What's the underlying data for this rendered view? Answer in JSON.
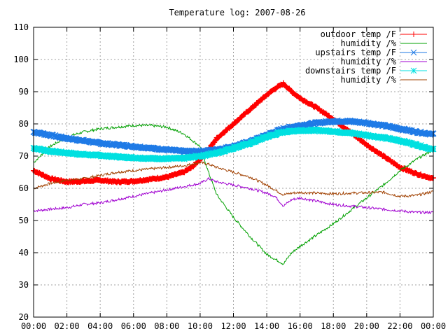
{
  "chart_data": {
    "type": "line",
    "title": "Temperature log: 2007-08-26",
    "xlabel": "",
    "ylabel": "",
    "x_ticks": [
      "00:00",
      "02:00",
      "04:00",
      "06:00",
      "08:00",
      "10:00",
      "12:00",
      "14:00",
      "16:00",
      "18:00",
      "20:00",
      "22:00",
      "00:00"
    ],
    "xlim": [
      0,
      24
    ],
    "ylim": [
      20,
      110
    ],
    "y_ticks": [
      20,
      30,
      40,
      50,
      60,
      70,
      80,
      90,
      100,
      110
    ],
    "grid": true,
    "legend_position": "top-right",
    "series": [
      {
        "name": "outdoor temp /F",
        "color": "#ff0000",
        "marker": "plus",
        "x": [
          0,
          1,
          2,
          3,
          4,
          5,
          6,
          7,
          8,
          9,
          9.5,
          10,
          10.5,
          11,
          12,
          13,
          14,
          14.5,
          15,
          15.5,
          16,
          17,
          18,
          19,
          20,
          21,
          22,
          23,
          24
        ],
        "y": [
          65.5,
          63.0,
          62.0,
          62.2,
          62.5,
          62.0,
          62.2,
          62.8,
          63.5,
          65.0,
          66.5,
          69.0,
          72.0,
          75.5,
          80.0,
          84.5,
          89.0,
          91.0,
          92.5,
          90.0,
          88.0,
          85.0,
          81.5,
          77.5,
          73.5,
          70.0,
          66.5,
          64.5,
          63.0
        ]
      },
      {
        "name": "humidity /%",
        "color": "#00a000",
        "marker": "none",
        "x": [
          0,
          1,
          2,
          3,
          4,
          5,
          6,
          7,
          8,
          9,
          10,
          10.5,
          11,
          12,
          13,
          14,
          14.5,
          15,
          15.5,
          16,
          17,
          18,
          19,
          20,
          21,
          22,
          23,
          24
        ],
        "y": [
          68.0,
          73.0,
          76.0,
          77.5,
          78.5,
          79.0,
          79.5,
          79.5,
          79.0,
          77.0,
          73.0,
          65.0,
          58.0,
          51.0,
          45.0,
          39.5,
          38.0,
          36.5,
          40.0,
          42.0,
          45.5,
          49.0,
          53.0,
          57.0,
          61.0,
          65.5,
          69.0,
          72.0
        ]
      },
      {
        "name": "upstairs temp /F",
        "color": "#1e7ae6",
        "marker": "cross",
        "x": [
          0,
          1,
          2,
          3,
          4,
          5,
          6,
          7,
          8,
          9,
          10,
          11,
          12,
          13,
          14,
          15,
          16,
          17,
          18,
          19,
          20,
          21,
          22,
          23,
          24
        ],
        "y": [
          77.5,
          76.5,
          75.5,
          74.8,
          74.0,
          73.5,
          73.0,
          72.5,
          72.0,
          71.5,
          71.5,
          72.0,
          73.0,
          74.5,
          76.5,
          78.5,
          79.5,
          80.3,
          80.8,
          80.8,
          80.3,
          79.5,
          78.5,
          77.5,
          76.8
        ]
      },
      {
        "name": "humidity /%",
        "color": "#a000d0",
        "marker": "none",
        "x": [
          0,
          1,
          2,
          3,
          4,
          5,
          6,
          7,
          8,
          9,
          10,
          10.5,
          11,
          12,
          13,
          14,
          14.5,
          15,
          15.5,
          16,
          17,
          18,
          19,
          20,
          21,
          22,
          23,
          24
        ],
        "y": [
          53.0,
          53.5,
          54.0,
          55.0,
          55.5,
          56.5,
          57.5,
          58.5,
          59.5,
          60.5,
          61.5,
          63.0,
          62.0,
          61.0,
          60.0,
          58.5,
          57.5,
          54.5,
          56.5,
          57.0,
          56.0,
          55.0,
          54.5,
          54.0,
          53.5,
          53.0,
          52.5,
          52.5
        ]
      },
      {
        "name": "downstairs temp /F",
        "color": "#00e0e0",
        "marker": "star",
        "x": [
          0,
          1,
          2,
          3,
          4,
          5,
          6,
          7,
          8,
          9,
          10,
          11,
          12,
          13,
          14,
          15,
          16,
          17,
          18,
          19,
          20,
          21,
          22,
          23,
          24
        ],
        "y": [
          72.5,
          71.5,
          71.0,
          70.5,
          70.2,
          69.8,
          69.5,
          69.3,
          69.2,
          69.3,
          70.0,
          71.0,
          72.5,
          74.0,
          76.0,
          77.5,
          78.0,
          78.0,
          77.7,
          77.2,
          76.5,
          75.7,
          74.8,
          73.5,
          72.0
        ]
      },
      {
        "name": "humidity /%",
        "color": "#a04000",
        "marker": "none",
        "x": [
          0,
          1,
          2,
          3,
          4,
          5,
          6,
          7,
          8,
          9,
          10,
          10.5,
          11,
          12,
          13,
          14,
          14.5,
          15,
          15.5,
          16,
          17,
          18,
          19,
          20,
          21,
          22,
          23,
          24
        ],
        "y": [
          60.0,
          61.5,
          62.5,
          63.0,
          64.0,
          65.0,
          65.5,
          66.0,
          66.5,
          67.0,
          68.0,
          67.5,
          66.5,
          65.0,
          63.5,
          61.0,
          59.5,
          58.0,
          58.5,
          58.7,
          58.5,
          58.3,
          58.5,
          58.6,
          58.8,
          57.5,
          57.8,
          59.0
        ]
      }
    ]
  }
}
